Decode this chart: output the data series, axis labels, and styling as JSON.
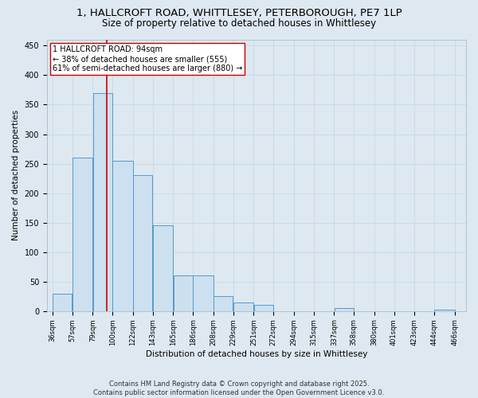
{
  "title_line1": "1, HALLCROFT ROAD, WHITTLESEY, PETERBOROUGH, PE7 1LP",
  "title_line2": "Size of property relative to detached houses in Whittlesey",
  "xlabel": "Distribution of detached houses by size in Whittlesey",
  "ylabel": "Number of detached properties",
  "bar_left_edges": [
    36,
    57,
    79,
    100,
    122,
    143,
    165,
    186,
    208,
    229,
    251,
    272,
    294,
    315,
    337,
    358,
    380,
    401,
    423,
    444
  ],
  "bar_widths": [
    21,
    22,
    21,
    22,
    21,
    22,
    21,
    22,
    21,
    22,
    21,
    22,
    21,
    22,
    21,
    22,
    21,
    22,
    21,
    22
  ],
  "bar_heights": [
    30,
    260,
    370,
    255,
    230,
    145,
    60,
    60,
    25,
    15,
    10,
    0,
    0,
    0,
    5,
    0,
    0,
    0,
    0,
    2
  ],
  "bar_facecolor": "#cce0f0",
  "bar_edgecolor": "#5599cc",
  "grid_color": "#c5d5e5",
  "background_color": "#dde8f0",
  "vline_x": 94,
  "vline_color": "#cc0000",
  "annotation_text": "1 HALLCROFT ROAD: 94sqm\n← 38% of detached houses are smaller (555)\n61% of semi-detached houses are larger (880) →",
  "annotation_box_facecolor": "#ffffff",
  "annotation_box_edgecolor": "#cc0000",
  "ylim": [
    0,
    460
  ],
  "yticks": [
    0,
    50,
    100,
    150,
    200,
    250,
    300,
    350,
    400,
    450
  ],
  "tick_labels": [
    "36sqm",
    "57sqm",
    "79sqm",
    "100sqm",
    "122sqm",
    "143sqm",
    "165sqm",
    "186sqm",
    "208sqm",
    "229sqm",
    "251sqm",
    "272sqm",
    "294sqm",
    "315sqm",
    "337sqm",
    "358sqm",
    "380sqm",
    "401sqm",
    "423sqm",
    "444sqm",
    "466sqm"
  ],
  "tick_positions": [
    36,
    57,
    79,
    100,
    122,
    143,
    165,
    186,
    208,
    229,
    251,
    272,
    294,
    315,
    337,
    358,
    380,
    401,
    423,
    444,
    466
  ],
  "footer_line1": "Contains HM Land Registry data © Crown copyright and database right 2025.",
  "footer_line2": "Contains public sector information licensed under the Open Government Licence v3.0.",
  "title_fontsize": 9.5,
  "subtitle_fontsize": 8.5,
  "axis_label_fontsize": 7.5,
  "tick_fontsize": 6,
  "annotation_fontsize": 7,
  "footer_fontsize": 6,
  "ylabel_fontsize": 7.5
}
